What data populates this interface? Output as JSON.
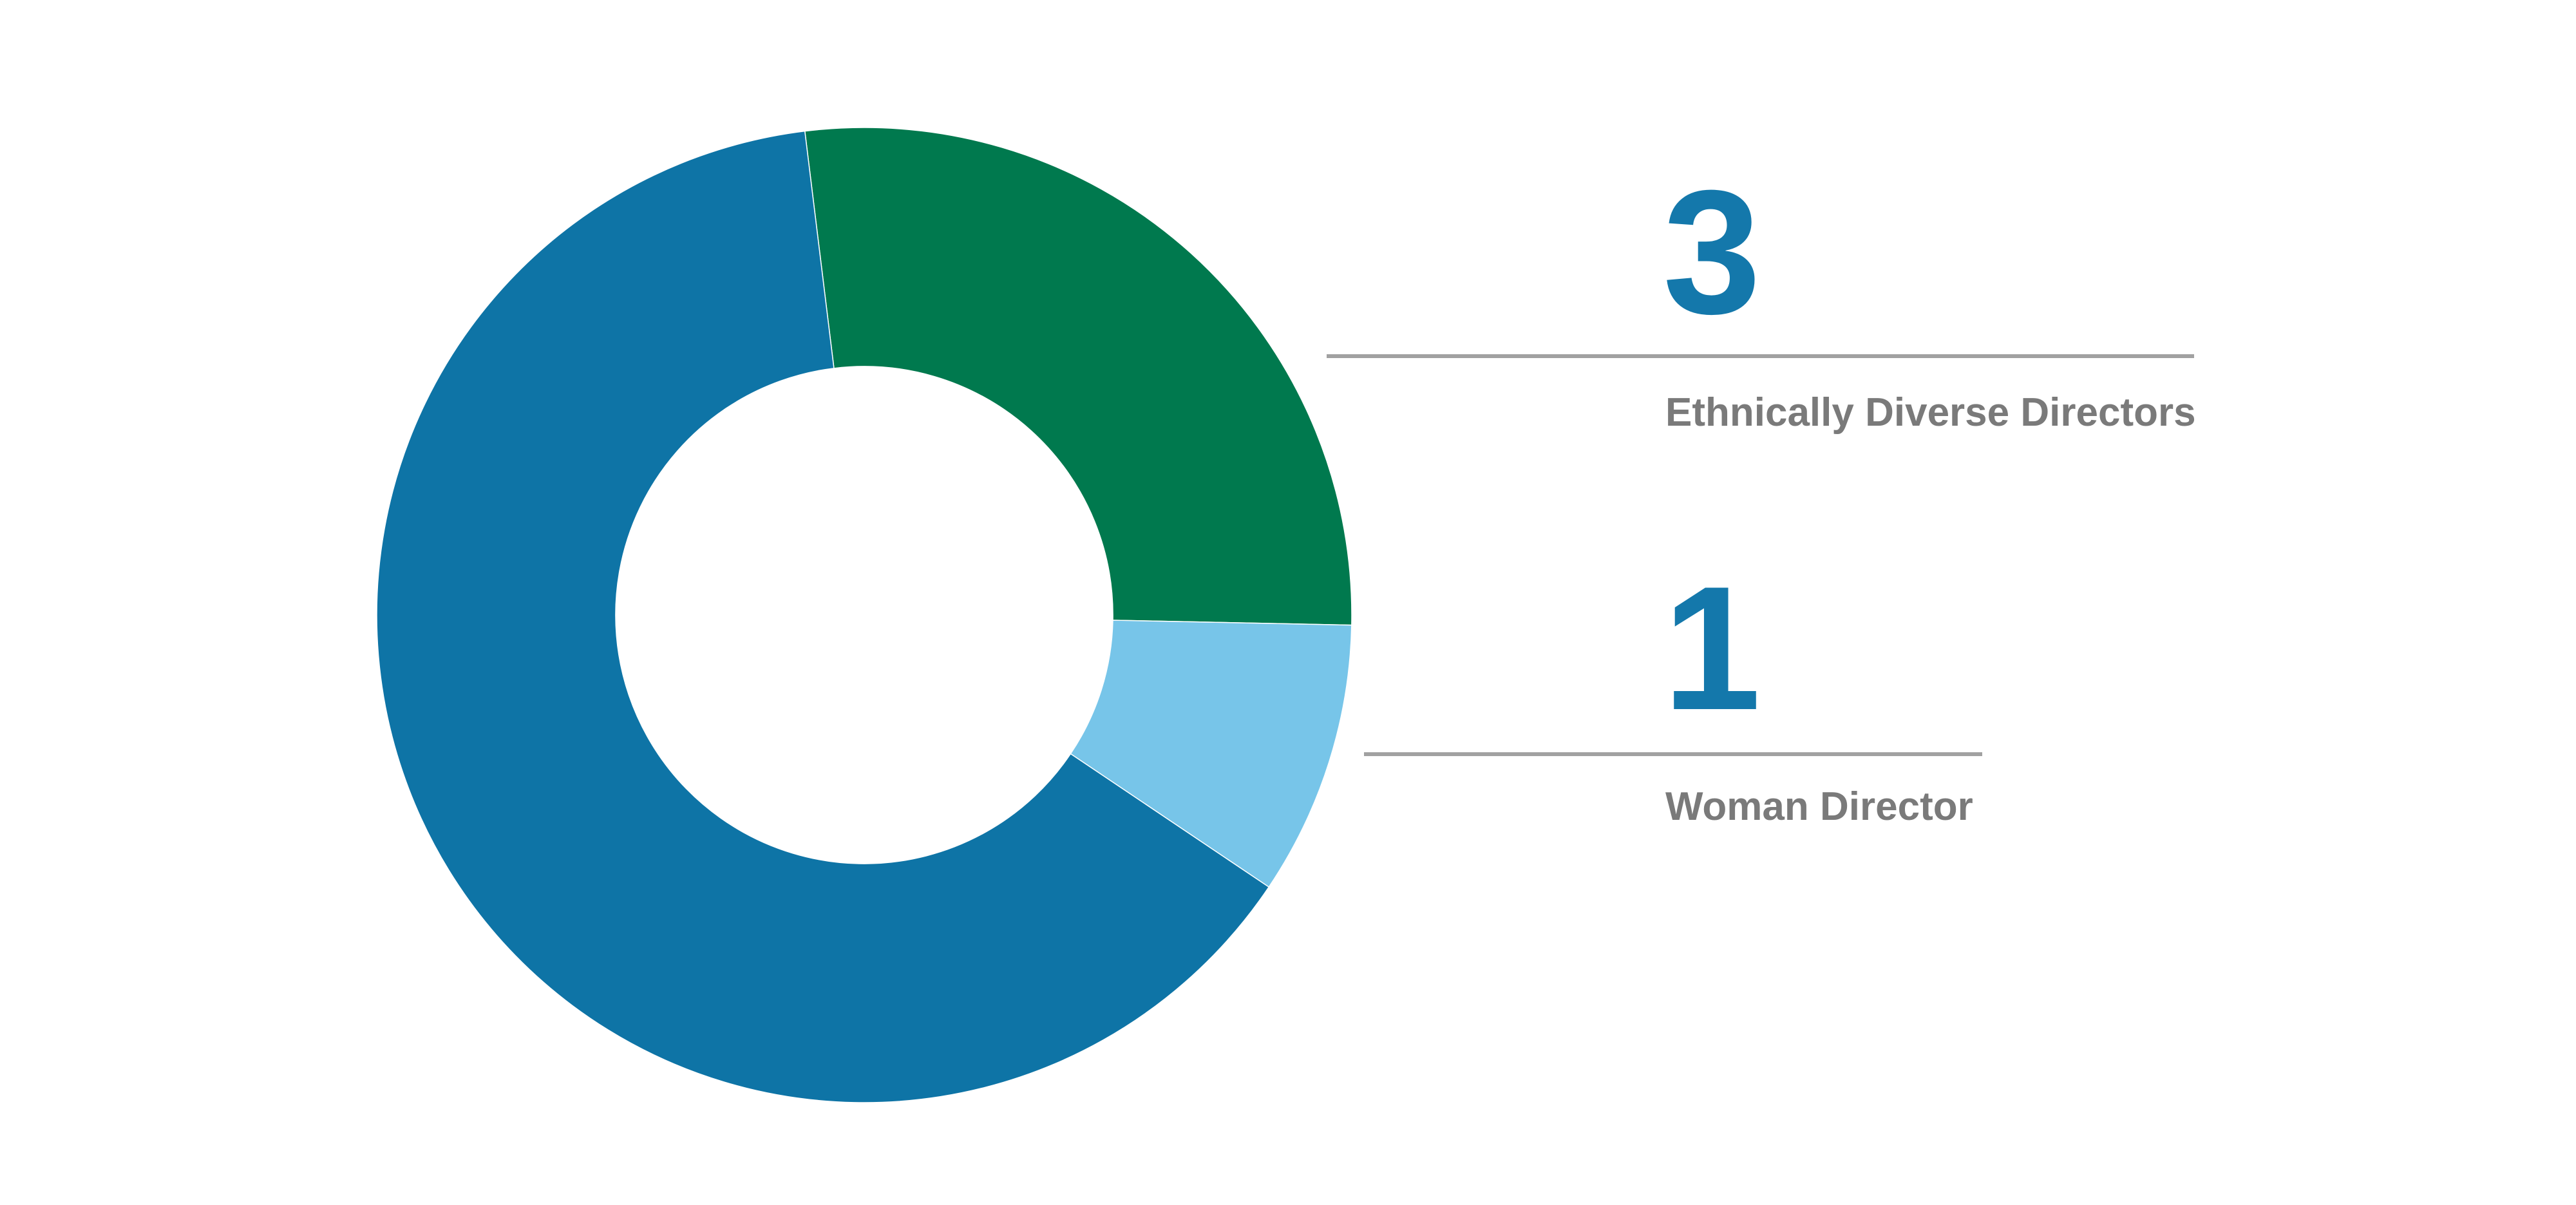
{
  "chart_data": {
    "type": "pie",
    "subtype": "donut",
    "title": "",
    "legend_position": "none",
    "direction": "clockwise",
    "start_angle_deg": -7,
    "inner_radius_ratio": 0.51,
    "total": 11,
    "segments": [
      {
        "label": "Ethnically Diverse Directors",
        "value": 3,
        "color": "#00794E"
      },
      {
        "label": "Woman Director",
        "value": 1,
        "color": "#77C5E9"
      },
      {
        "label": "",
        "value": 7,
        "color": "#0E74A6"
      }
    ]
  },
  "callouts": [
    {
      "value": "3",
      "label": "Ethnically Diverse Directors"
    },
    {
      "value": "1",
      "label": "Woman Director"
    }
  ],
  "colors": {
    "accent_number": "#1478AB",
    "divider_line": "#A1A1A1",
    "label_text": "#7A7A7A",
    "background": "#FFFFFF"
  }
}
